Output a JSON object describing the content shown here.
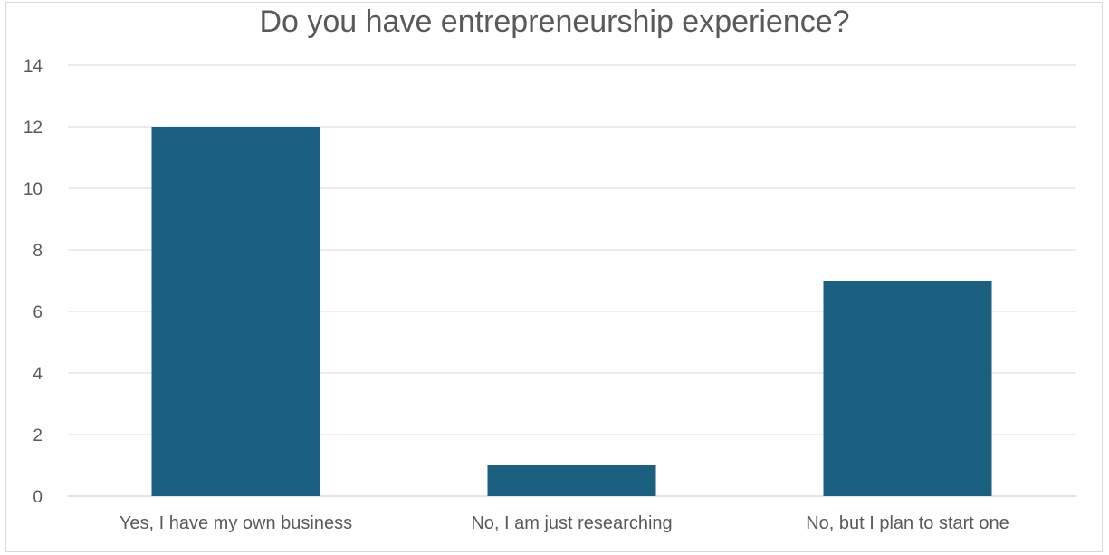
{
  "chart_data": {
    "type": "bar",
    "title": "Do you have entrepreneurship experience?",
    "categories": [
      "Yes, I have my own business",
      "No, I am just researching",
      "No, but I plan to start one"
    ],
    "values": [
      12,
      1,
      7
    ],
    "ylim": [
      0,
      14
    ],
    "yticks": [
      "0",
      "2",
      "4",
      "6",
      "8",
      "10",
      "12",
      "14"
    ],
    "xlabel": "",
    "ylabel": "",
    "grid": true,
    "legend": "none",
    "bar_color": "#1a5e80",
    "grid_color": "#d9d9d9"
  }
}
